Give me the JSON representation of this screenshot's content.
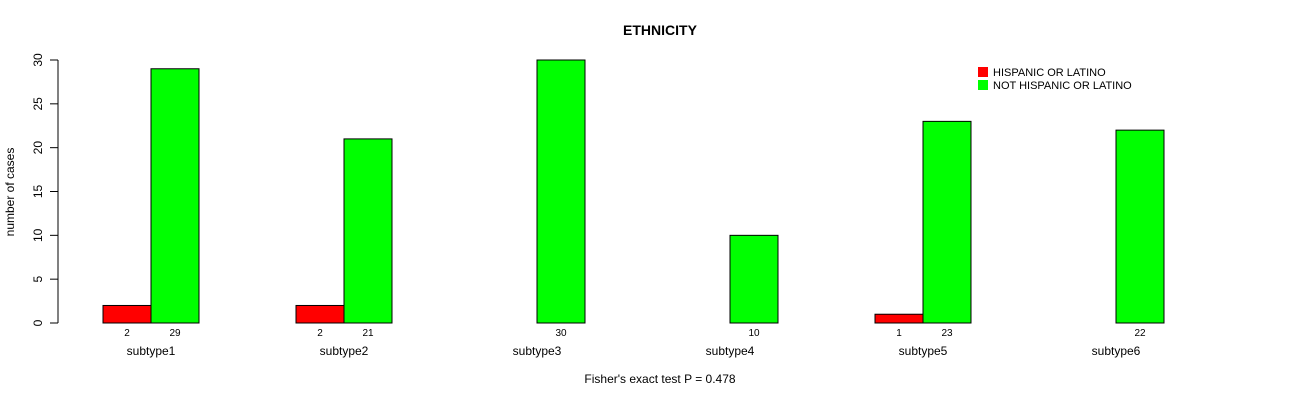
{
  "chart_data": {
    "type": "bar",
    "title": "ETHNICITY",
    "xlabel": "",
    "ylabel": "number of cases",
    "ylim": [
      0,
      30
    ],
    "yticks": [
      0,
      5,
      10,
      15,
      20,
      25,
      30
    ],
    "categories": [
      "subtype1",
      "subtype2",
      "subtype3",
      "subtype4",
      "subtype5",
      "subtype6"
    ],
    "series": [
      {
        "name": "HISPANIC OR LATINO",
        "color": "#ff0000",
        "values": [
          2,
          2,
          0,
          0,
          1,
          0
        ],
        "labels": [
          "2",
          "2",
          "",
          "",
          "1",
          ""
        ]
      },
      {
        "name": "NOT HISPANIC OR LATINO",
        "color": "#00ff00",
        "values": [
          29,
          21,
          30,
          10,
          23,
          22
        ],
        "labels": [
          "29",
          "21",
          "30",
          "10",
          "23",
          "22"
        ]
      }
    ],
    "legend_position": "top-right",
    "footnote": "Fisher's exact test P = 0.478"
  }
}
